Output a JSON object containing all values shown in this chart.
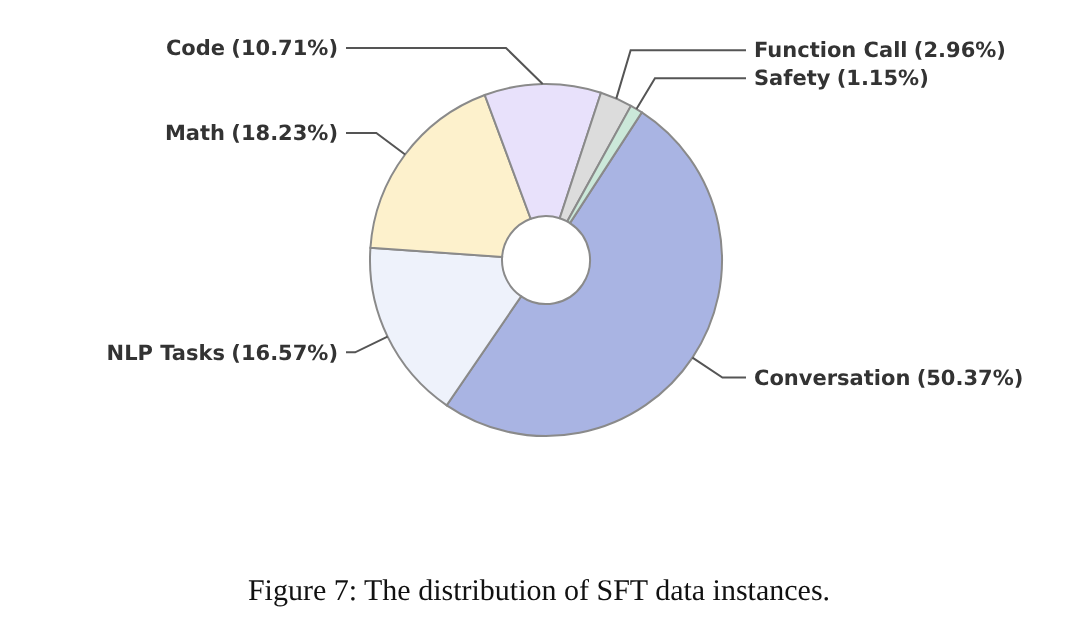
{
  "chart_data": {
    "type": "donut",
    "categories": [
      "Conversation",
      "NLP Tasks",
      "Math",
      "Code",
      "Function Call",
      "Safety"
    ],
    "values": [
      50.37,
      16.57,
      18.23,
      10.71,
      2.96,
      1.15
    ],
    "colors": [
      "#a9b4e3",
      "#eef2fb",
      "#fdf1cc",
      "#e8e1fb",
      "#dcdcdc",
      "#cbe8d9"
    ],
    "value_labels": [
      "(50.37%)",
      "(16.57%)",
      "(18.23%)",
      "(10.71%)",
      "(2.96%)",
      "(1.15%)"
    ],
    "annotations": [
      "Figure 7: The distribution of SFT data instances."
    ]
  }
}
